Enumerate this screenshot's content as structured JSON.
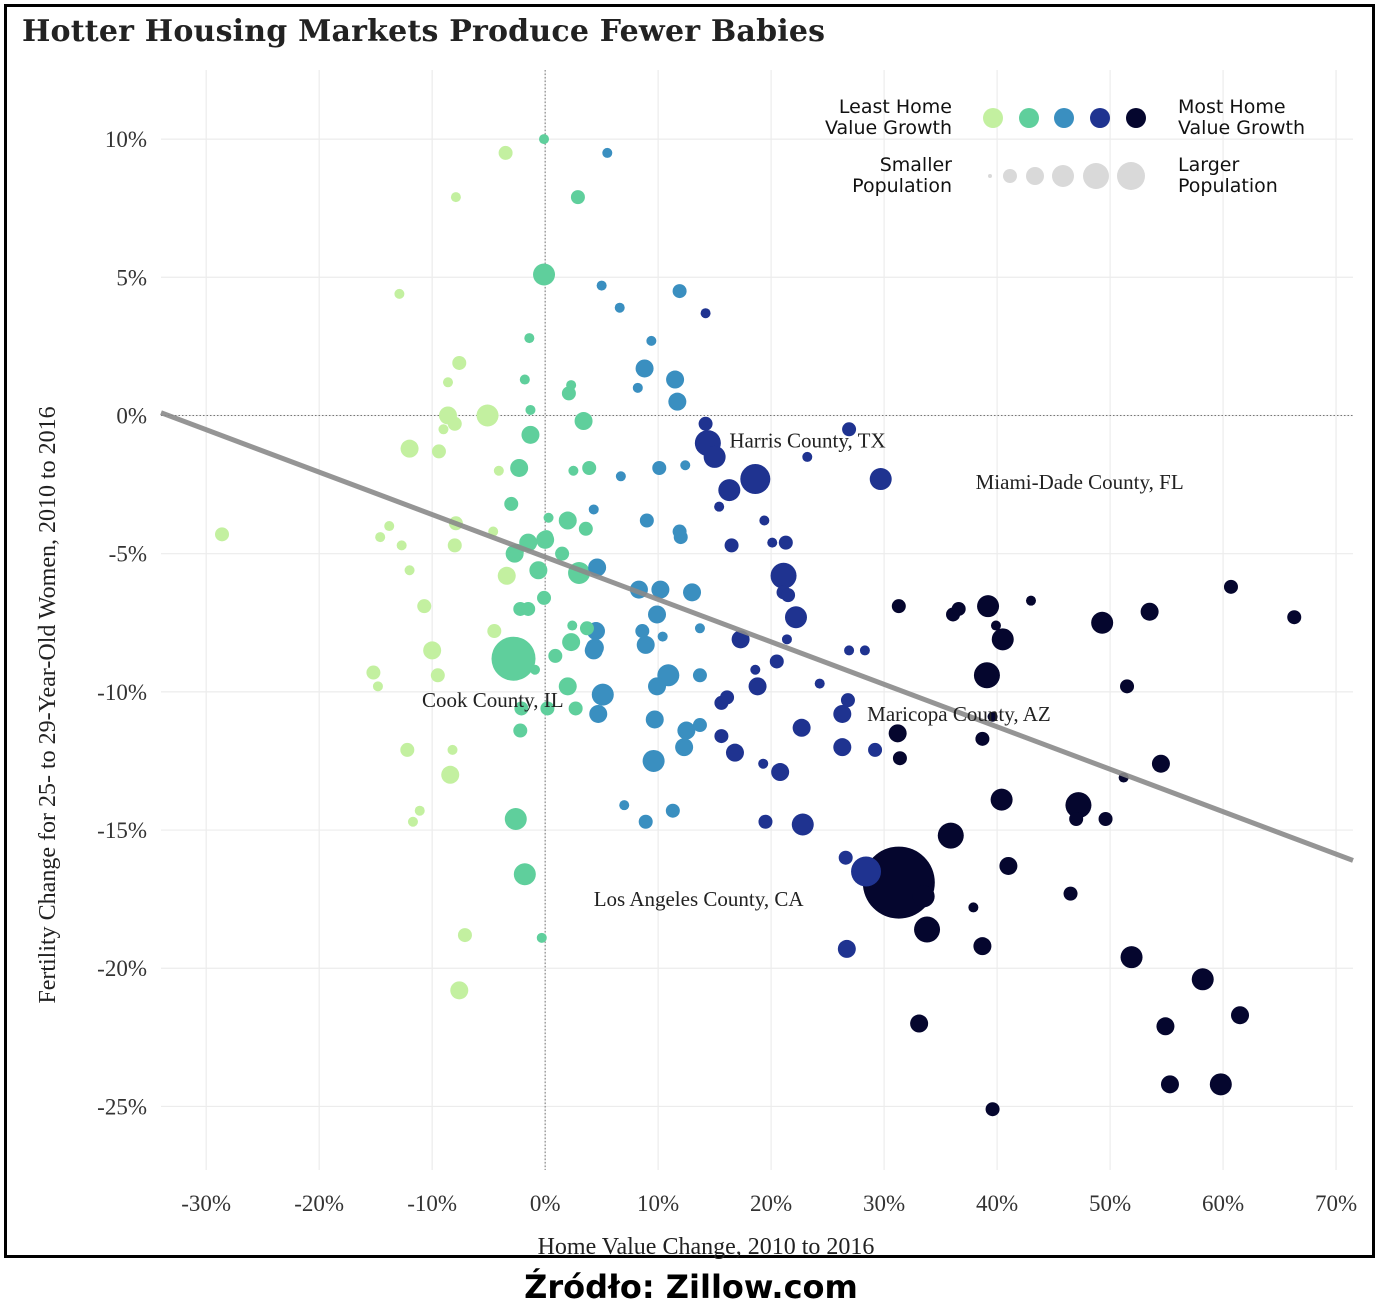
{
  "title": "Hotter Housing Markets Produce Fewer Babies",
  "source": "Źródło: Zillow.com",
  "legend": {
    "color_low": "Least Home\nValue Growth",
    "color_high": "Most Home\nValue Growth",
    "size_low": "Smaller\nPopulation",
    "size_high": "Larger\nPopulation",
    "palette": [
      "#c3f0a0",
      "#5fcf9c",
      "#3a8fc0",
      "#1f3390",
      "#05062e"
    ]
  },
  "chart_data": {
    "type": "scatter",
    "title": "Hotter Housing Markets Produce Fewer Babies",
    "xlabel": "Home Value Change, 2010 to 2016",
    "ylabel": "Fertility Change for 25- to 29-Year-Old Women, 2010 to 2016",
    "xlim": [
      -34,
      71.5
    ],
    "ylim": [
      -27.3,
      12.5
    ],
    "xticks": [
      -30,
      -20,
      -10,
      0,
      10,
      20,
      30,
      40,
      50,
      60,
      70
    ],
    "yticks": [
      10,
      5,
      0,
      -5,
      -10,
      -15,
      -20,
      -25
    ],
    "xtick_labels": [
      "-30%",
      "-20%",
      "-10%",
      "0%",
      "10%",
      "20%",
      "30%",
      "40%",
      "50%",
      "60%",
      "70%"
    ],
    "ytick_labels": [
      "10%",
      "5%",
      "0%",
      "-5%",
      "-10%",
      "-15%",
      "-20%",
      "-25%"
    ],
    "trend_line": {
      "x": [
        -34,
        71.5
      ],
      "y": [
        0.1,
        -16.1
      ]
    },
    "reference_lines": {
      "x": 0,
      "y": 0
    },
    "annotations": [
      {
        "text": "Harris County, TX",
        "x": 16.3,
        "y": -0.9
      },
      {
        "text": "Miami-Dade County, FL",
        "x": 38.1,
        "y": -2.4
      },
      {
        "text": "Cook County, IL",
        "x": -10.9,
        "y": -10.3
      },
      {
        "text": "Maricopa County, AZ",
        "x": 28.5,
        "y": -10.8
      },
      {
        "text": "Los Angeles County, CA",
        "x": 4.3,
        "y": -17.5
      }
    ],
    "points": [
      [
        -3.5,
        9.5,
        1
      ],
      [
        -0.1,
        10.0,
        0
      ],
      [
        5.5,
        9.5,
        0
      ],
      [
        -7.9,
        7.9,
        0
      ],
      [
        2.9,
        7.9,
        1
      ],
      [
        -0.1,
        5.1,
        3
      ],
      [
        -12.9,
        4.4,
        0
      ],
      [
        5.0,
        4.7,
        0
      ],
      [
        6.6,
        3.9,
        0
      ],
      [
        11.9,
        4.5,
        1
      ],
      [
        14.2,
        3.7,
        0
      ],
      [
        -1.4,
        2.8,
        0
      ],
      [
        9.4,
        2.7,
        0
      ],
      [
        -7.6,
        1.9,
        1
      ],
      [
        8.8,
        1.7,
        2
      ],
      [
        11.5,
        1.3,
        2
      ],
      [
        -8.6,
        1.2,
        0
      ],
      [
        -1.8,
        1.3,
        0
      ],
      [
        2.3,
        1.1,
        0
      ],
      [
        8.2,
        1.0,
        0
      ],
      [
        2.1,
        0.8,
        1
      ],
      [
        11.7,
        0.5,
        2
      ],
      [
        -8.6,
        0.0,
        2
      ],
      [
        -5.1,
        0.0,
        3
      ],
      [
        -1.3,
        0.2,
        0
      ],
      [
        3.4,
        -0.2,
        2
      ],
      [
        -8.0,
        -0.3,
        1
      ],
      [
        -9.0,
        -0.5,
        0
      ],
      [
        -1.3,
        -0.7,
        2
      ],
      [
        14.2,
        -0.3,
        1
      ],
      [
        14.4,
        -1.0,
        4
      ],
      [
        -12.0,
        -1.2,
        2
      ],
      [
        -9.4,
        -1.3,
        1
      ],
      [
        15.0,
        -1.5,
        3
      ],
      [
        -2.3,
        -1.9,
        2
      ],
      [
        -4.1,
        -2.0,
        0
      ],
      [
        2.5,
        -2.0,
        0
      ],
      [
        3.9,
        -1.9,
        1
      ],
      [
        10.1,
        -1.9,
        1
      ],
      [
        12.4,
        -1.8,
        0
      ],
      [
        6.7,
        -2.2,
        0
      ],
      [
        16.3,
        -2.7,
        3
      ],
      [
        18.6,
        -2.3,
        5
      ],
      [
        23.2,
        -1.5,
        0
      ],
      [
        26.9,
        -0.5,
        1
      ],
      [
        29.7,
        -2.3,
        3
      ],
      [
        -3.0,
        -3.2,
        1
      ],
      [
        0.3,
        -3.7,
        0
      ],
      [
        -7.9,
        -3.9,
        1
      ],
      [
        -13.8,
        -4.0,
        0
      ],
      [
        -14.6,
        -4.4,
        0
      ],
      [
        -12.7,
        -4.7,
        0
      ],
      [
        -4.6,
        -4.2,
        0
      ],
      [
        -1.5,
        -4.6,
        2
      ],
      [
        -2.7,
        -5.0,
        2
      ],
      [
        -8.0,
        -4.7,
        1
      ],
      [
        2.0,
        -3.8,
        2
      ],
      [
        3.6,
        -4.1,
        1
      ],
      [
        4.3,
        -3.4,
        0
      ],
      [
        9.0,
        -3.8,
        1
      ],
      [
        11.9,
        -4.2,
        1
      ],
      [
        12.0,
        -4.4,
        1
      ],
      [
        15.4,
        -3.3,
        0
      ],
      [
        16.5,
        -4.7,
        1
      ],
      [
        19.4,
        -3.8,
        0
      ],
      [
        20.1,
        -4.6,
        0
      ],
      [
        21.3,
        -4.6,
        1
      ],
      [
        0.0,
        -4.5,
        2
      ],
      [
        -12.0,
        -5.6,
        0
      ],
      [
        -3.4,
        -5.8,
        2
      ],
      [
        -0.6,
        -5.6,
        2
      ],
      [
        3.0,
        -5.7,
        3
      ],
      [
        4.6,
        -5.5,
        2
      ],
      [
        8.3,
        -6.3,
        2
      ],
      [
        10.2,
        -6.3,
        2
      ],
      [
        13.0,
        -6.4,
        2
      ],
      [
        21.1,
        -6.4,
        1
      ],
      [
        21.1,
        -5.8,
        4
      ],
      [
        21.5,
        -6.5,
        1
      ],
      [
        22.2,
        -7.3,
        3
      ],
      [
        -10.7,
        -6.9,
        1
      ],
      [
        -0.1,
        -6.6,
        1
      ],
      [
        -2.2,
        -7.0,
        1
      ],
      [
        -1.5,
        -7.0,
        1
      ],
      [
        9.9,
        -7.2,
        2
      ],
      [
        2.4,
        -7.6,
        0
      ],
      [
        3.7,
        -7.7,
        1
      ],
      [
        4.5,
        -7.8,
        2
      ],
      [
        8.6,
        -7.8,
        1
      ],
      [
        10.4,
        -8.0,
        0
      ],
      [
        13.7,
        -7.7,
        0
      ],
      [
        17.3,
        -8.1,
        2
      ],
      [
        21.4,
        -8.1,
        0
      ],
      [
        -4.5,
        -7.8,
        1
      ],
      [
        -10.0,
        -8.5,
        2
      ],
      [
        -2.8,
        -8.8,
        6
      ],
      [
        0.9,
        -8.7,
        1
      ],
      [
        2.3,
        -8.2,
        2
      ],
      [
        4.4,
        -8.4,
        2
      ],
      [
        4.3,
        -8.5,
        2
      ],
      [
        8.9,
        -8.3,
        2
      ],
      [
        26.9,
        -8.5,
        0
      ],
      [
        28.3,
        -8.5,
        0
      ],
      [
        31.3,
        -6.9,
        1
      ],
      [
        36.1,
        -7.2,
        1
      ],
      [
        36.6,
        -7.0,
        1
      ],
      [
        39.2,
        -6.9,
        3
      ],
      [
        39.9,
        -7.6,
        0
      ],
      [
        40.5,
        -8.1,
        3
      ],
      [
        43.0,
        -6.7,
        0
      ],
      [
        49.3,
        -7.5,
        3
      ],
      [
        53.5,
        -7.1,
        2
      ],
      [
        60.7,
        -6.2,
        1
      ],
      [
        66.3,
        -7.3,
        1
      ],
      [
        -15.2,
        -9.3,
        1
      ],
      [
        -14.8,
        -9.8,
        0
      ],
      [
        -9.5,
        -9.4,
        1
      ],
      [
        -0.9,
        -9.2,
        0
      ],
      [
        2.0,
        -9.8,
        2
      ],
      [
        5.1,
        -10.1,
        3
      ],
      [
        9.9,
        -9.8,
        2
      ],
      [
        10.9,
        -9.4,
        3
      ],
      [
        13.7,
        -9.4,
        1
      ],
      [
        15.6,
        -10.4,
        1
      ],
      [
        16.1,
        -10.2,
        1
      ],
      [
        18.6,
        -9.2,
        0
      ],
      [
        18.8,
        -9.8,
        2
      ],
      [
        20.5,
        -8.9,
        1
      ],
      [
        24.3,
        -9.7,
        0
      ],
      [
        26.8,
        -10.3,
        1
      ],
      [
        26.3,
        -10.8,
        2
      ],
      [
        39.6,
        -10.9,
        0
      ],
      [
        39.1,
        -9.4,
        4
      ],
      [
        51.5,
        -9.8,
        1
      ],
      [
        -2.1,
        -10.6,
        1
      ],
      [
        0.2,
        -10.6,
        1
      ],
      [
        2.7,
        -10.6,
        1
      ],
      [
        4.7,
        -10.8,
        2
      ],
      [
        9.7,
        -11.0,
        2
      ],
      [
        12.5,
        -11.4,
        2
      ],
      [
        13.7,
        -11.2,
        1
      ],
      [
        15.6,
        -11.6,
        1
      ],
      [
        22.7,
        -11.3,
        2
      ],
      [
        31.2,
        -11.5,
        2
      ],
      [
        -2.2,
        -11.4,
        1
      ],
      [
        -12.2,
        -12.1,
        1
      ],
      [
        -8.2,
        -12.1,
        0
      ],
      [
        12.3,
        -12.0,
        2
      ],
      [
        9.6,
        -12.5,
        3
      ],
      [
        16.8,
        -12.2,
        2
      ],
      [
        19.3,
        -12.6,
        0
      ],
      [
        20.8,
        -12.9,
        2
      ],
      [
        26.3,
        -12.0,
        2
      ],
      [
        29.2,
        -12.1,
        1
      ],
      [
        31.4,
        -12.4,
        1
      ],
      [
        38.7,
        -11.7,
        1
      ],
      [
        51.2,
        -13.1,
        0
      ],
      [
        54.5,
        -12.6,
        2
      ],
      [
        -8.4,
        -13.0,
        2
      ],
      [
        -11.1,
        -14.3,
        0
      ],
      [
        -11.7,
        -14.7,
        0
      ],
      [
        -2.6,
        -14.6,
        3
      ],
      [
        7.0,
        -14.1,
        0
      ],
      [
        8.9,
        -14.7,
        1
      ],
      [
        11.3,
        -14.3,
        1
      ],
      [
        19.5,
        -14.7,
        1
      ],
      [
        22.8,
        -14.8,
        3
      ],
      [
        35.9,
        -15.2,
        4
      ],
      [
        40.4,
        -13.9,
        3
      ],
      [
        47.2,
        -14.1,
        4
      ],
      [
        47.0,
        -14.6,
        1
      ],
      [
        49.6,
        -14.6,
        1
      ],
      [
        26.6,
        -16.0,
        1
      ],
      [
        28.4,
        -16.5,
        5
      ],
      [
        31.3,
        -16.9,
        9
      ],
      [
        33.5,
        -17.4,
        3
      ],
      [
        33.8,
        -18.6,
        4
      ],
      [
        37.9,
        -17.8,
        0
      ],
      [
        38.7,
        -19.2,
        2
      ],
      [
        41.0,
        -16.3,
        2
      ],
      [
        46.5,
        -17.3,
        1
      ],
      [
        -1.8,
        -16.6,
        3
      ],
      [
        -0.3,
        -18.9,
        0
      ],
      [
        -7.1,
        -18.8,
        1
      ],
      [
        -7.6,
        -20.8,
        2
      ],
      [
        26.7,
        -19.3,
        2
      ],
      [
        51.9,
        -19.6,
        3
      ],
      [
        58.2,
        -20.4,
        3
      ],
      [
        61.5,
        -21.7,
        2
      ],
      [
        33.1,
        -22.0,
        2
      ],
      [
        54.9,
        -22.1,
        2
      ],
      [
        55.3,
        -24.2,
        2
      ],
      [
        59.8,
        -24.2,
        3
      ],
      [
        39.6,
        -25.1,
        1
      ],
      [
        -28.6,
        -4.3,
        1
      ],
      [
        0.1,
        -4.4,
        1
      ],
      [
        1.5,
        -5.0,
        1
      ],
      [
        -2.5,
        -4.9,
        1
      ]
    ]
  }
}
